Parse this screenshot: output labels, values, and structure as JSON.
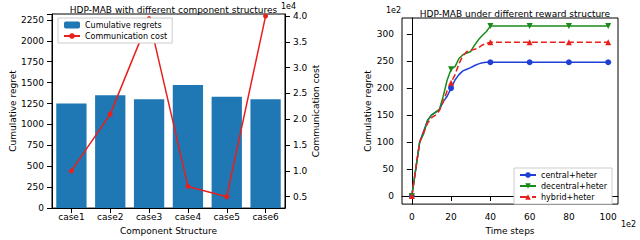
{
  "chart_data": [
    {
      "type": "bar",
      "title": "HDP-MAB with different component structures",
      "xlabel": "Component Structure",
      "ylabel": "Cumulative regret",
      "y2label": "Communication cost",
      "annotations": [
        "1e4"
      ],
      "categories": [
        "case1",
        "case2",
        "case3",
        "case4",
        "case5",
        "case6"
      ],
      "series": [
        {
          "name": "Cumulative regrets",
          "type": "bar",
          "color": "#1f77b4",
          "values": [
            1250,
            1350,
            1300,
            1470,
            1330,
            1300
          ]
        },
        {
          "name": "Communication cost",
          "type": "line",
          "color": "#e8201c",
          "marker": "circle",
          "line_style": "solid",
          "axis": "y2",
          "values": [
            1.0,
            2.1,
            3.95,
            0.7,
            0.5,
            4.0
          ]
        }
      ],
      "ylim": [
        0,
        2320
      ],
      "yticks": [
        0,
        250,
        500,
        750,
        1000,
        1250,
        1500,
        1750,
        2000,
        2250
      ],
      "y2lim": [
        0.28,
        4.04
      ],
      "y2ticks": [
        0.5,
        {
          "value": 1,
          "label": "1.0"
        },
        1.5,
        {
          "value": 2,
          "label": "2.0"
        },
        2.5,
        {
          "value": 3,
          "label": "3.0"
        },
        3.5,
        {
          "value": 4,
          "label": "4.0"
        }
      ],
      "legend": "upper left",
      "grid": false
    },
    {
      "type": "line",
      "title": "HDP-MAB under different reward structure",
      "xlabel": "Time steps",
      "ylabel": "Cumulative regret",
      "annotations": [
        "1e2",
        "1e2"
      ],
      "x": [
        0,
        2,
        4,
        6,
        8,
        10,
        12,
        14,
        16,
        18,
        20,
        22,
        24,
        26,
        28,
        30,
        32,
        34,
        36,
        38,
        40,
        60,
        80,
        100
      ],
      "series": [
        {
          "name": "central+heter",
          "color": "#1f3fd6",
          "marker": "circle",
          "line_style": "solid",
          "values": [
            0,
            50,
            100,
            120,
            140,
            150,
            155,
            160,
            175,
            185,
            200,
            215,
            225,
            232,
            235,
            238,
            242,
            245,
            247,
            248,
            248,
            248,
            248,
            248
          ]
        },
        {
          "name": "decentral+heter",
          "color": "#1a8a1a",
          "marker": "triangle-down",
          "line_style": "solid",
          "values": [
            0,
            50,
            100,
            115,
            140,
            150,
            155,
            160,
            185,
            215,
            235,
            240,
            255,
            262,
            265,
            268,
            280,
            290,
            298,
            305,
            315,
            315,
            315,
            315
          ]
        },
        {
          "name": "hybrid+heter",
          "color": "#e8201c",
          "marker": "triangle",
          "line_style": "dashed",
          "values": [
            0,
            50,
            100,
            118,
            135,
            145,
            150,
            158,
            175,
            195,
            210,
            225,
            245,
            260,
            268,
            270,
            272,
            275,
            280,
            283,
            285,
            285,
            285,
            285
          ]
        }
      ],
      "xlim": [
        -5,
        105
      ],
      "xticks": [
        0,
        20,
        40,
        60,
        80,
        100
      ],
      "ylim": [
        -15,
        330
      ],
      "yticks": [
        0,
        50,
        100,
        150,
        200,
        250,
        300
      ],
      "legend": "lower right",
      "grid": false
    }
  ]
}
